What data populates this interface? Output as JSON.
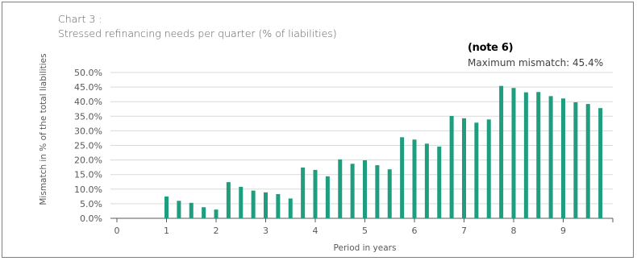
{
  "chart_data": {
    "type": "bar",
    "title": "Chart 3 :",
    "subtitle": "Stressed refinancing needs per quarter  (% of liabilities)",
    "xlabel": "Period in years",
    "ylabel": "Mismatch in % of the total liabilities",
    "xlim": [
      0,
      10
    ],
    "ylim": [
      0,
      50
    ],
    "x_ticks": [
      "0",
      "1",
      "2",
      "3",
      "4",
      "5",
      "6",
      "7",
      "8",
      "9"
    ],
    "y_ticks": [
      "0.0%",
      "5.0%",
      "10.0%",
      "15.0%",
      "20.0%",
      "25.0%",
      "30.0%",
      "35.0%",
      "40.0%",
      "45.0%",
      "50.0%"
    ],
    "grid": true,
    "bar_color": "#1e9e7e",
    "x": [
      1,
      1.25,
      1.5,
      1.75,
      2,
      2.25,
      2.5,
      2.75,
      3,
      3.25,
      3.5,
      3.75,
      4,
      4.25,
      4.5,
      4.75,
      5,
      5.25,
      5.5,
      5.75,
      6,
      6.25,
      6.5,
      6.75,
      7,
      7.25,
      7.5,
      7.75,
      8,
      8.25,
      8.5,
      8.75,
      9,
      9.25,
      9.5,
      9.75
    ],
    "values": [
      7.5,
      6.0,
      5.3,
      3.8,
      3.0,
      12.4,
      10.8,
      9.5,
      8.9,
      8.3,
      6.8,
      17.4,
      16.6,
      14.4,
      20.2,
      18.7,
      19.9,
      18.2,
      16.8,
      27.8,
      27.0,
      25.6,
      24.6,
      35.1,
      34.3,
      32.8,
      33.9,
      45.4,
      44.7,
      43.2,
      43.3,
      41.9,
      41.1,
      39.8,
      39.2,
      37.8
    ],
    "annotations": [
      "(note 6)",
      "Maximum mismatch: 45.4%"
    ]
  }
}
